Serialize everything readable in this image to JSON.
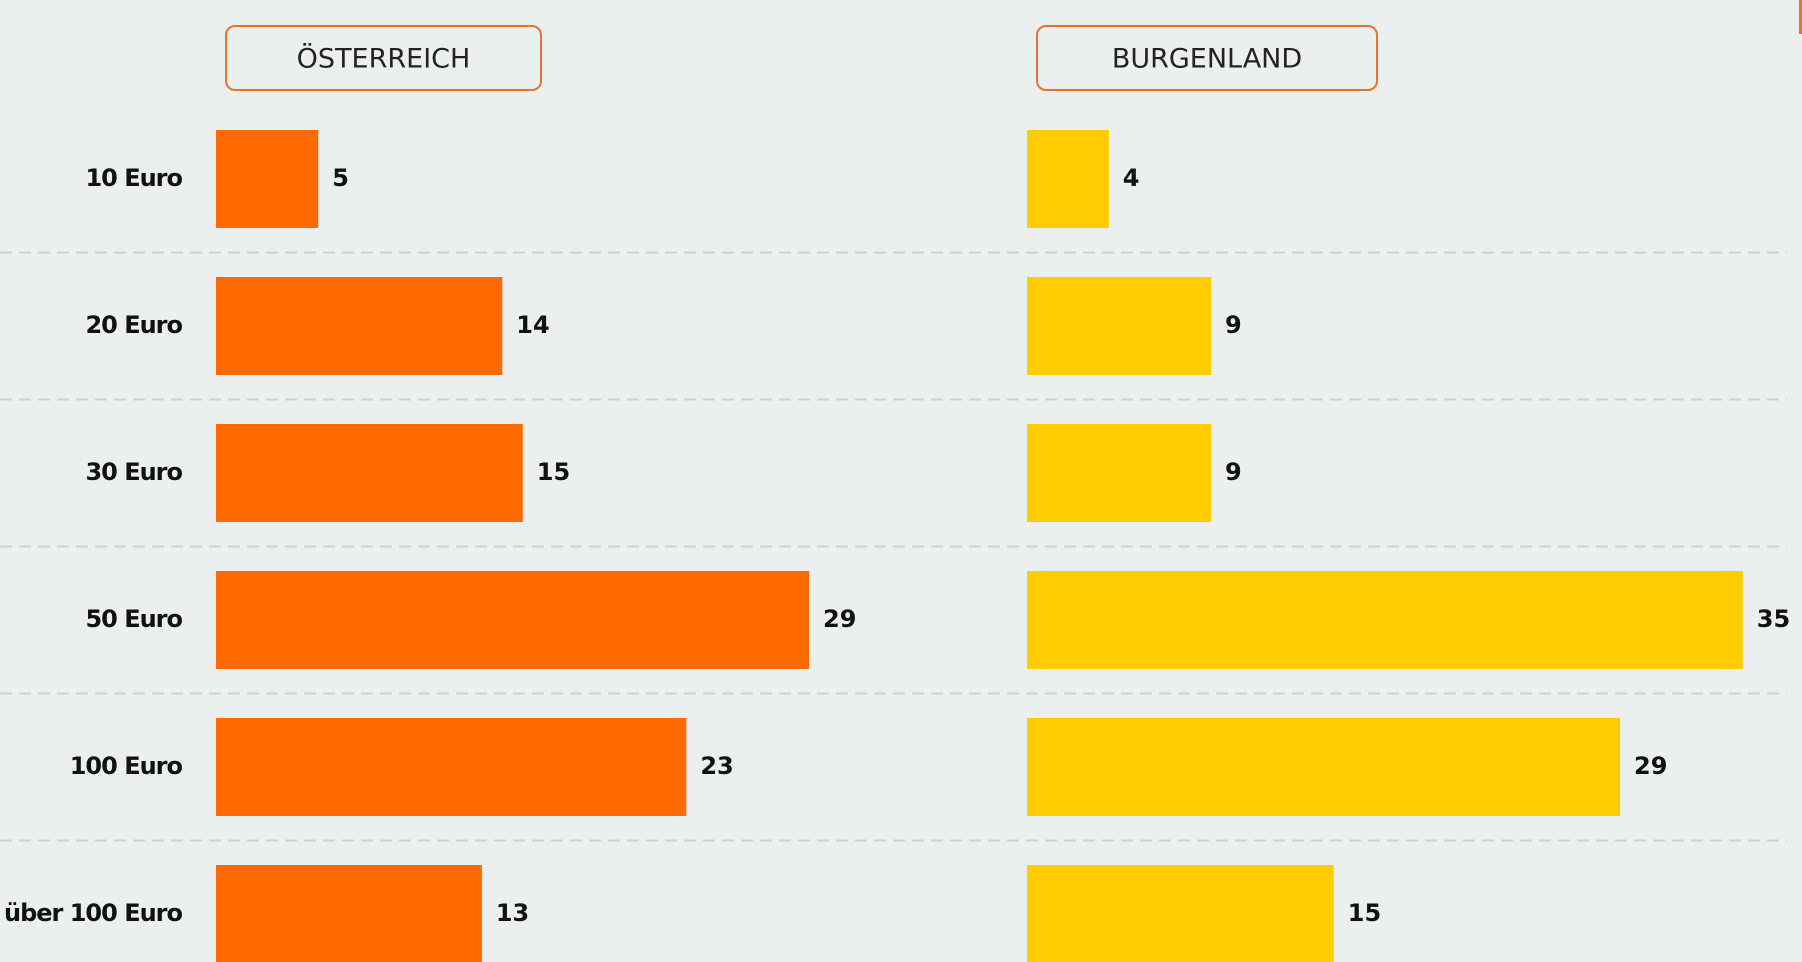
{
  "chart_data": {
    "type": "bar",
    "orientation": "horizontal",
    "categories": [
      "10 Euro",
      "20 Euro",
      "30 Euro",
      "50 Euro",
      "100 Euro",
      "über 100 Euro"
    ],
    "series": [
      {
        "name": "ÖSTERREICH",
        "color": "#ff6a00",
        "values": [
          5,
          14,
          15,
          29,
          23,
          13
        ]
      },
      {
        "name": "BURGENLAND",
        "color": "#ffcc00",
        "values": [
          4,
          9,
          9,
          35,
          29,
          15
        ]
      }
    ]
  }
}
